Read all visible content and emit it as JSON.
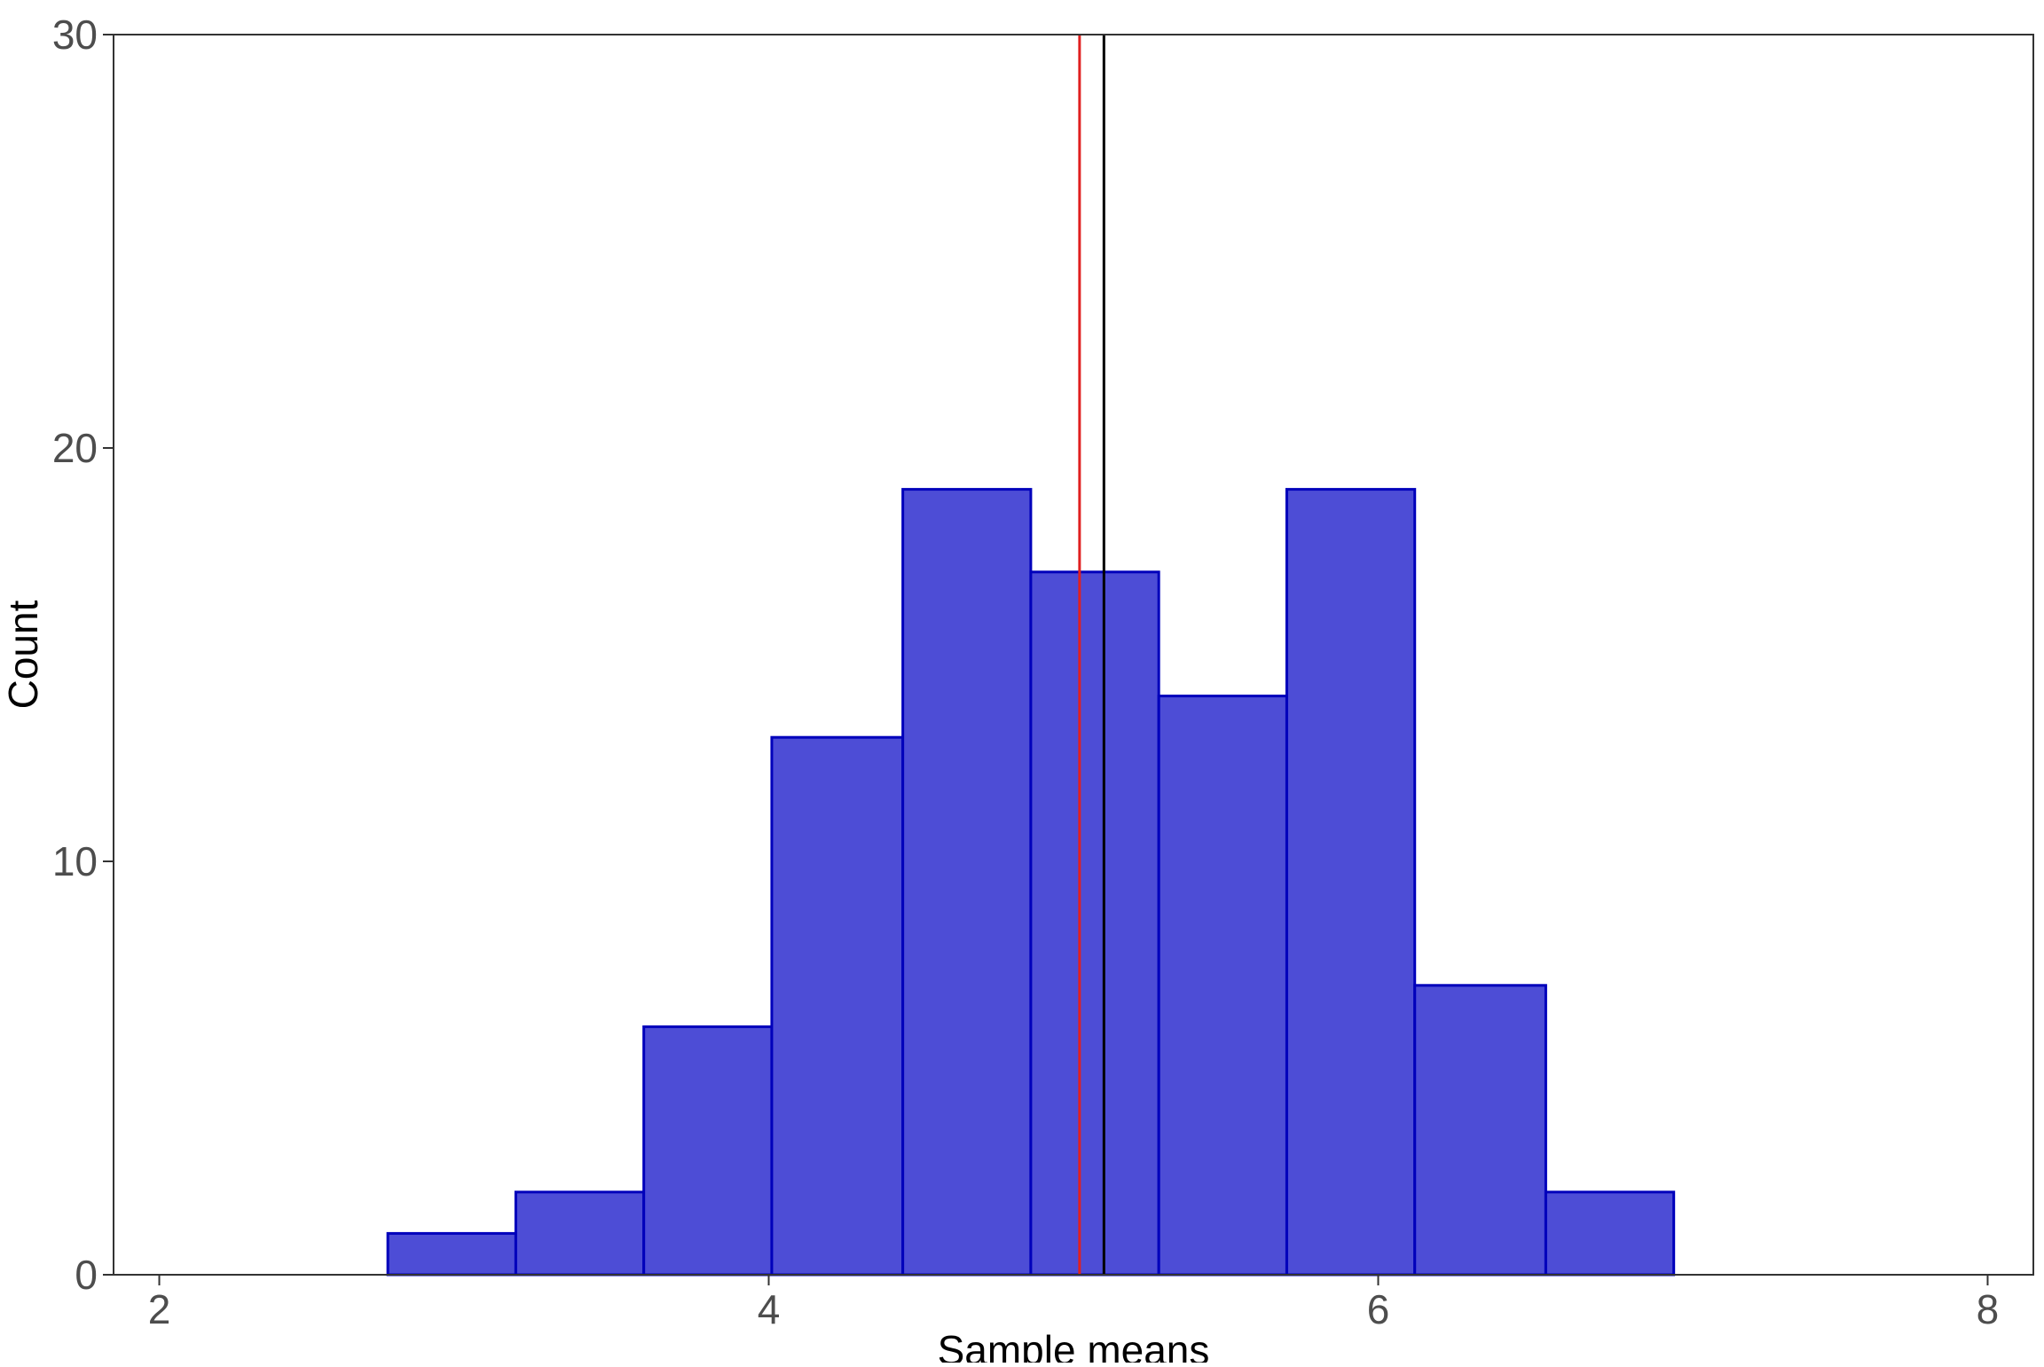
{
  "chart_data": {
    "type": "bar",
    "xlabel": "Sample means",
    "ylabel": "Count",
    "xlim": [
      1.85,
      8.15
    ],
    "ylim": [
      0,
      30
    ],
    "x_ticks": [
      2,
      4,
      6,
      8
    ],
    "y_ticks": [
      0,
      10,
      20,
      30
    ],
    "bins": [
      {
        "x0": 2.75,
        "x1": 3.17,
        "count": 1
      },
      {
        "x0": 3.17,
        "x1": 3.59,
        "count": 2
      },
      {
        "x0": 3.59,
        "x1": 4.01,
        "count": 6
      },
      {
        "x0": 4.01,
        "x1": 4.44,
        "count": 13
      },
      {
        "x0": 4.44,
        "x1": 4.86,
        "count": 19
      },
      {
        "x0": 4.86,
        "x1": 5.28,
        "count": 17
      },
      {
        "x0": 5.28,
        "x1": 5.7,
        "count": 14
      },
      {
        "x0": 5.7,
        "x1": 6.12,
        "count": 19
      },
      {
        "x0": 6.12,
        "x1": 6.55,
        "count": 7
      },
      {
        "x0": 6.55,
        "x1": 6.97,
        "count": 2
      }
    ],
    "vlines": [
      {
        "x": 5.02,
        "color": "#e02020"
      },
      {
        "x": 5.1,
        "color": "#000000"
      }
    ],
    "grid": false,
    "legend": "none",
    "colors": {
      "bar_fill": "#4d4dd6",
      "bar_stroke": "#0000bb",
      "axis": "#333333",
      "tick_label": "#4d4d4d",
      "axis_title": "#000000"
    }
  }
}
